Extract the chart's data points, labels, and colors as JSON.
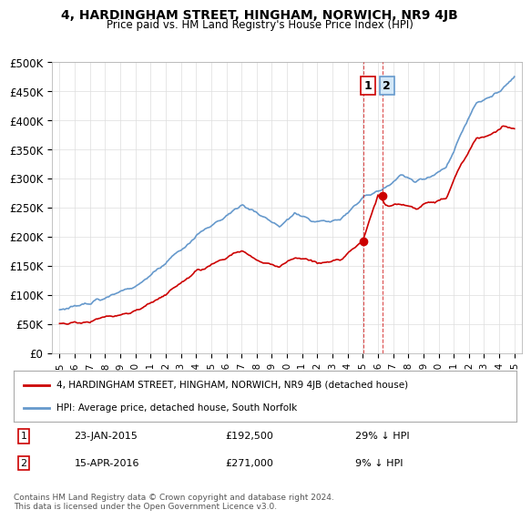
{
  "title": "4, HARDINGHAM STREET, HINGHAM, NORWICH, NR9 4JB",
  "subtitle": "Price paid vs. HM Land Registry's House Price Index (HPI)",
  "ylim": [
    0,
    500000
  ],
  "yticks": [
    0,
    50000,
    100000,
    150000,
    200000,
    250000,
    300000,
    350000,
    400000,
    450000,
    500000
  ],
  "ytick_labels": [
    "£0",
    "£50K",
    "£100K",
    "£150K",
    "£200K",
    "£250K",
    "£300K",
    "£350K",
    "£400K",
    "£450K",
    "£500K"
  ],
  "hpi_color": "#6699cc",
  "price_color": "#cc0000",
  "marker1_date_idx": 20,
  "marker2_date_idx": 21,
  "purchase1_date": "23-JAN-2015",
  "purchase1_price": 192500,
  "purchase1_hpi_pct": "29% ↓ HPI",
  "purchase2_date": "15-APR-2016",
  "purchase2_price": 271000,
  "purchase2_hpi_pct": "9% ↓ HPI",
  "legend_label1": "4, HARDINGHAM STREET, HINGHAM, NORWICH, NR9 4JB (detached house)",
  "legend_label2": "HPI: Average price, detached house, South Norfolk",
  "footer": "Contains HM Land Registry data © Crown copyright and database right 2024.\nThis data is licensed under the Open Government Licence v3.0.",
  "background_color": "#ffffff",
  "grid_color": "#dddddd"
}
